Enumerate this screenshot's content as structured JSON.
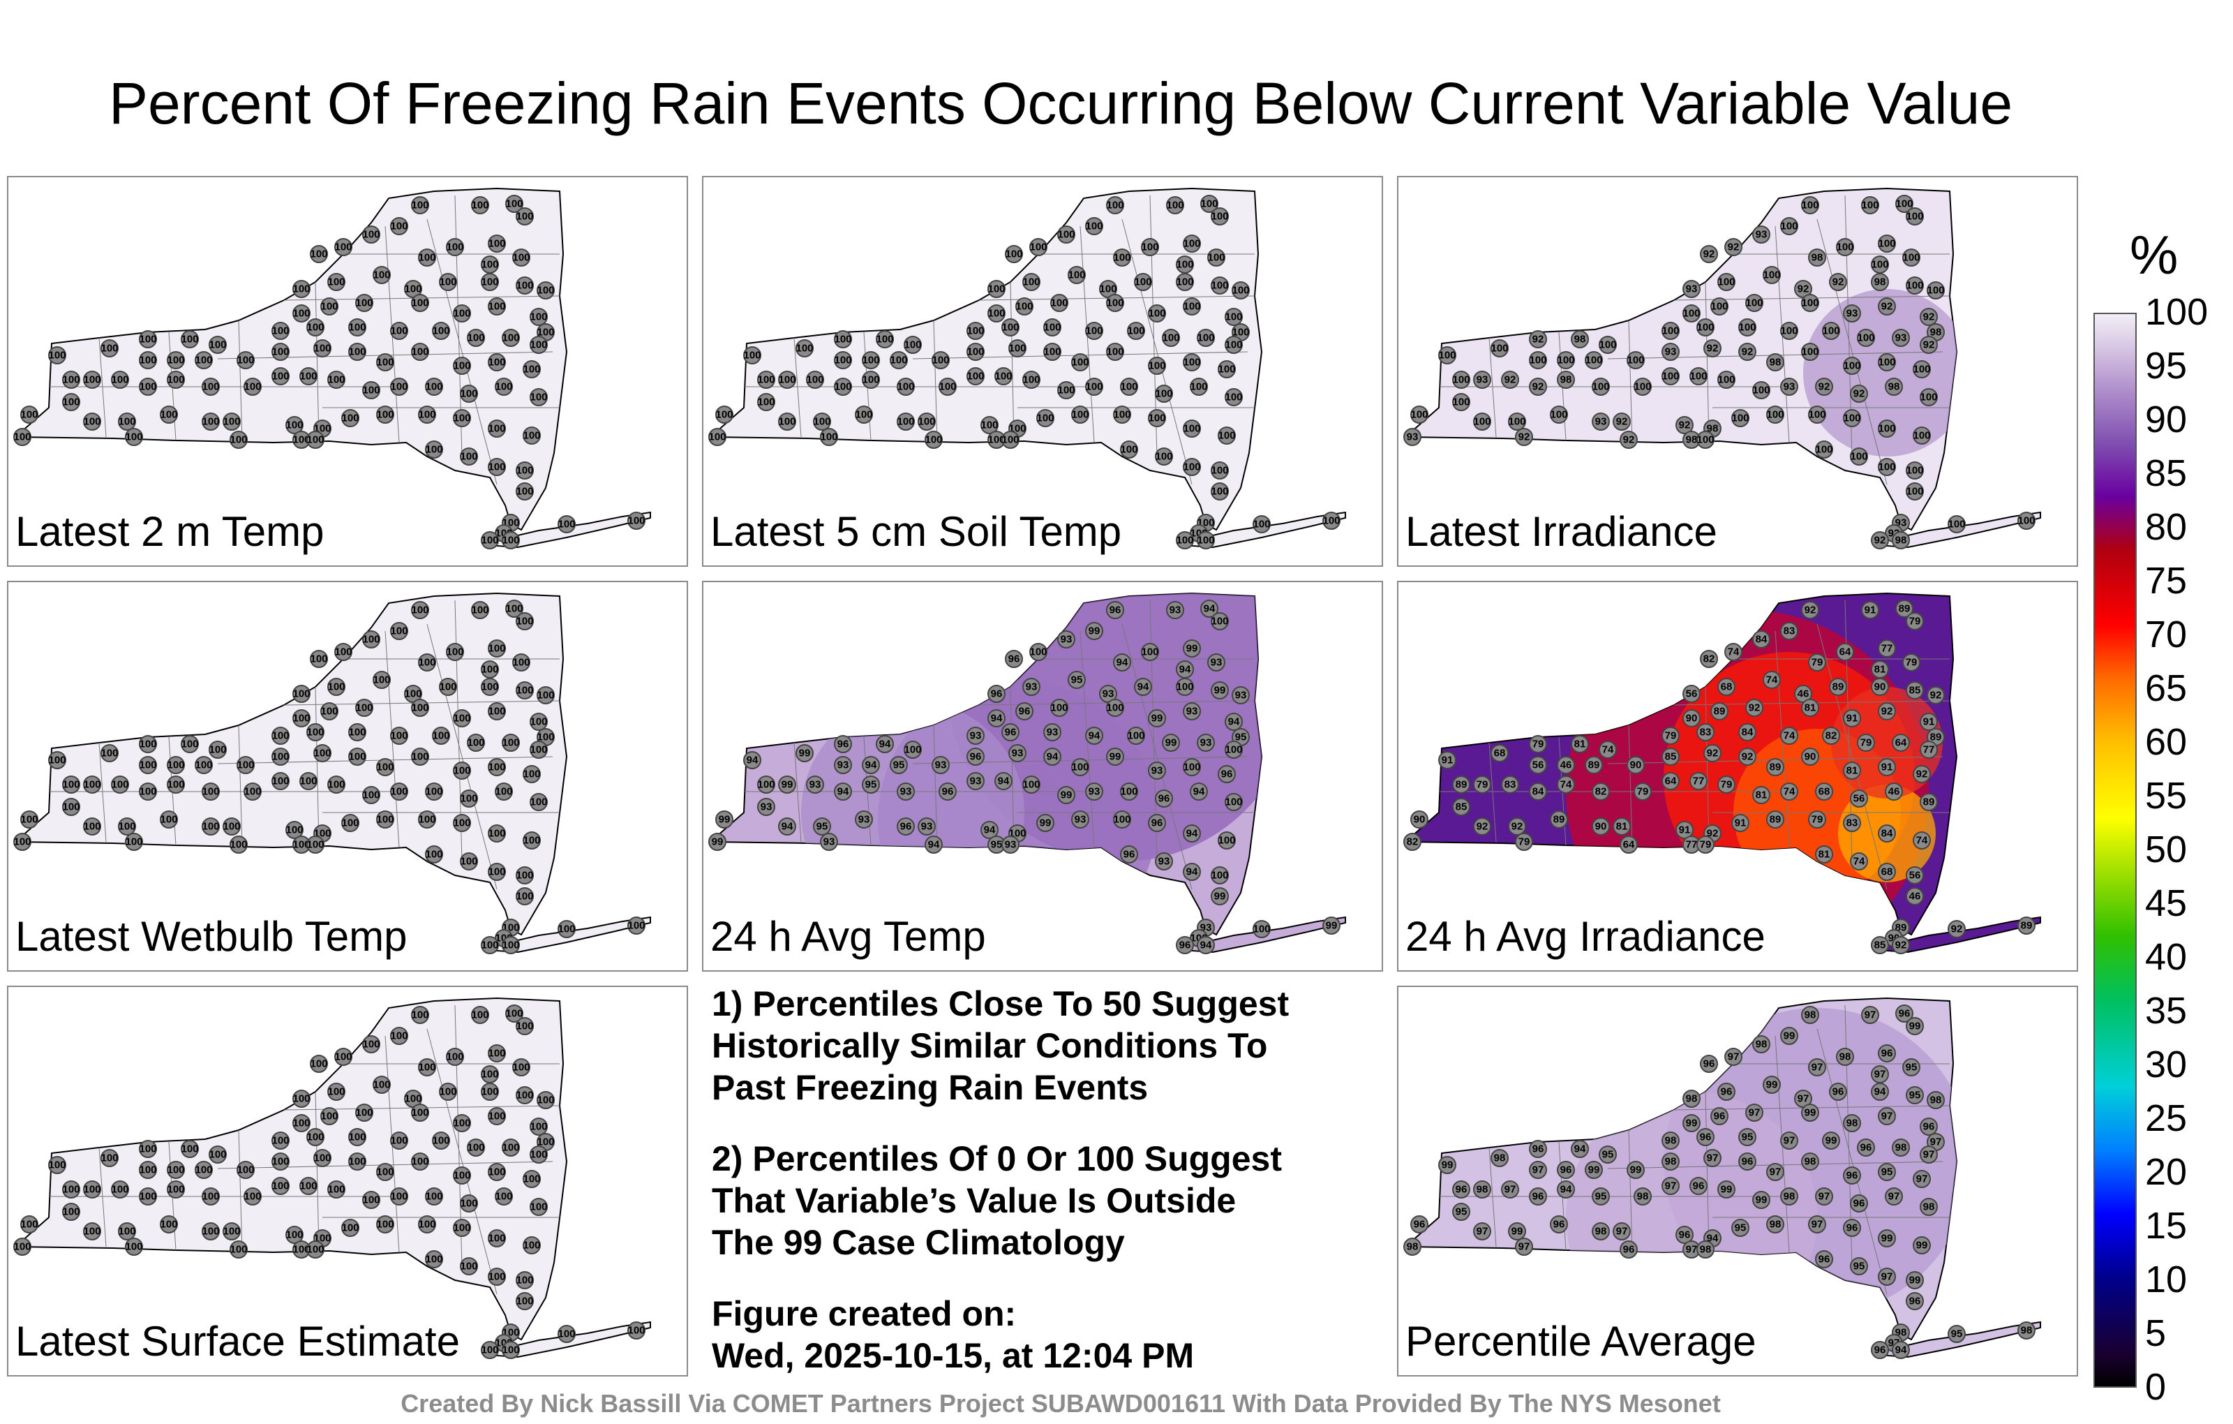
{
  "title": "Percent Of Freezing Rain Events Occurring Below Current Variable Value",
  "credit": "Created By Nick Bassill Via COMET Partners Project SUBAWD001611 With Data Provided By The NYS Mesonet",
  "colorbar": {
    "unit": "%",
    "ticks": [
      "100",
      "95",
      "90",
      "85",
      "80",
      "75",
      "70",
      "65",
      "60",
      "55",
      "50",
      "45",
      "40",
      "35",
      "30",
      "25",
      "20",
      "15",
      "10",
      "5",
      "0"
    ],
    "min": 0,
    "max": 100
  },
  "panels": [
    {
      "label": "Latest 2 m Temp",
      "fill": "#f2eef6",
      "mode": "uniform",
      "value": "100"
    },
    {
      "label": "Latest 5 cm Soil Temp",
      "fill": "#f2eef6",
      "mode": "uniform",
      "value": "100"
    },
    {
      "label": "Latest Irradiance",
      "fill": "#ece4f3",
      "mode": "irr",
      "value": "100"
    },
    {
      "label": "Latest Wetbulb Temp",
      "fill": "#f2eef6",
      "mode": "uniform",
      "value": "100"
    },
    {
      "label": "24 h Avg Temp",
      "fill": "#c6acd8",
      "mode": "avgtemp",
      "value": "93"
    },
    {
      "label": "24 h Avg Irradiance",
      "fill": "#5a1a94",
      "mode": "avgirr",
      "value": "89"
    },
    {
      "label": "Latest Surface Estimate",
      "fill": "#f2eef6",
      "mode": "uniform",
      "value": "100"
    },
    {
      "label": "Percentile Average",
      "fill": "#d4c2e4",
      "mode": "avg",
      "value": "97"
    }
  ],
  "station_values": {
    "irr": [
      "100",
      "100",
      "100",
      "100",
      "100",
      "93",
      "92",
      "92",
      "98",
      "100"
    ],
    "avgtemp": [
      "96",
      "93",
      "94",
      "100",
      "99",
      "93",
      "100",
      "96",
      "94",
      "100",
      "99",
      "93",
      "94",
      "95",
      "93"
    ],
    "avgirr": [
      "92",
      "91",
      "89",
      "79",
      "83",
      "84",
      "74",
      "82",
      "79",
      "64",
      "77",
      "79",
      "81",
      "74",
      "68",
      "56",
      "46",
      "89",
      "90",
      "85",
      "92",
      "92",
      "89",
      "90",
      "81",
      "91"
    ],
    "avg": [
      "98",
      "97",
      "96",
      "99",
      "99",
      "98",
      "97",
      "96",
      "97",
      "98",
      "96",
      "95",
      "97",
      "99",
      "96",
      "98",
      "97",
      "96",
      "94",
      "95"
    ]
  },
  "notes": [
    "1) Percentiles Close To 50 Suggest\nHistorically Similar Conditions To\nPast Freezing Rain Events",
    "2) Percentiles Of 0 Or 100 Suggest\nThat Variable’s Value Is Outside\nThe 99 Case Climatology",
    "Figure created on:\nWed, 2025-10-15, at 12:04 PM"
  ]
}
